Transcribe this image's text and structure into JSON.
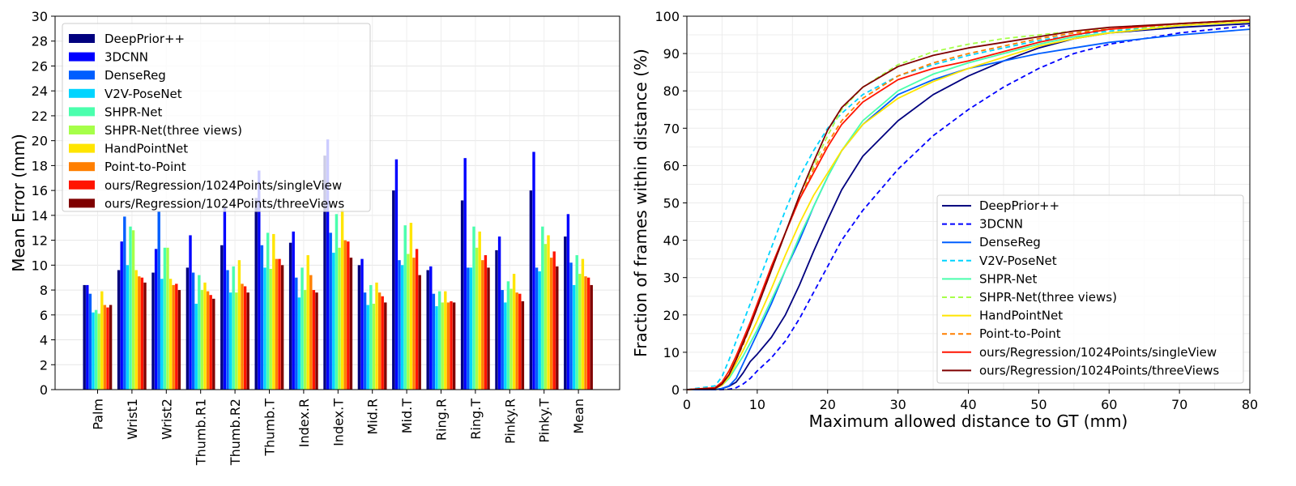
{
  "chart_data": [
    {
      "type": "bar",
      "title": "",
      "xlabel": "",
      "ylabel": "Mean Error (mm)",
      "ylim": [
        0,
        30
      ],
      "yticks": [
        0,
        2,
        4,
        6,
        8,
        10,
        12,
        14,
        16,
        18,
        20,
        22,
        24,
        26,
        28,
        30
      ],
      "grid": true,
      "legend_position": "top-left",
      "categories": [
        "Palm",
        "Wrist1",
        "Wrist2",
        "Thumb.R1",
        "Thumb.R2",
        "Thumb.T",
        "Index.R",
        "Index.T",
        "Mid.R",
        "Mid.T",
        "Ring.R",
        "Ring.T",
        "Pinky.R",
        "Pinky.T",
        "Mean"
      ],
      "series": [
        {
          "name": "DeepPrior++",
          "color": "#00007f",
          "values": [
            8.4,
            9.6,
            9.4,
            9.8,
            11.6,
            15.4,
            11.8,
            18.8,
            10.0,
            16.0,
            9.6,
            15.2,
            11.2,
            16.0,
            12.3
          ]
        },
        {
          "name": "3DCNN",
          "color": "#0000ff",
          "values": [
            8.4,
            11.9,
            11.3,
            12.4,
            14.7,
            17.6,
            12.7,
            20.1,
            10.5,
            18.5,
            9.9,
            18.6,
            12.3,
            19.1,
            14.1
          ]
        },
        {
          "name": "DenseReg",
          "color": "#005eff",
          "values": [
            7.7,
            13.9,
            14.3,
            9.4,
            9.6,
            11.6,
            9.0,
            12.6,
            7.8,
            10.4,
            7.7,
            9.8,
            8.0,
            9.8,
            10.2
          ]
        },
        {
          "name": "V2V-PoseNet",
          "color": "#00d4ff",
          "values": [
            6.2,
            10.0,
            8.9,
            6.9,
            7.8,
            9.8,
            7.4,
            11.0,
            6.8,
            10.0,
            6.7,
            9.8,
            7.0,
            9.5,
            8.4
          ]
        },
        {
          "name": "SHPR-Net",
          "color": "#4affad",
          "values": [
            6.4,
            13.1,
            11.4,
            9.2,
            9.9,
            12.6,
            9.8,
            14.1,
            8.4,
            13.2,
            7.9,
            13.1,
            8.7,
            13.1,
            10.8
          ]
        },
        {
          "name": "SHPR-Net(three views)",
          "color": "#a6ff49",
          "values": [
            6.1,
            12.8,
            11.4,
            8.0,
            7.8,
            9.7,
            8.0,
            11.4,
            6.9,
            10.9,
            7.0,
            11.4,
            8.1,
            11.7,
            9.3
          ]
        },
        {
          "name": "HandPointNet",
          "color": "#ffe500",
          "values": [
            7.9,
            9.6,
            8.9,
            8.6,
            10.4,
            12.5,
            10.8,
            14.5,
            8.6,
            13.4,
            7.9,
            12.7,
            9.3,
            12.4,
            10.5
          ]
        },
        {
          "name": "Point-to-Point",
          "color": "#ff7f00",
          "values": [
            6.8,
            9.1,
            8.4,
            7.9,
            8.5,
            10.5,
            9.2,
            12.0,
            7.8,
            10.6,
            7.0,
            10.4,
            7.8,
            10.6,
            9.1
          ]
        },
        {
          "name": "ours/Regression/1024Points/singleView",
          "color": "#ff1400",
          "values": [
            6.6,
            9.0,
            8.5,
            7.6,
            8.3,
            10.5,
            8.0,
            11.9,
            7.5,
            11.3,
            7.1,
            10.8,
            7.7,
            11.1,
            9.0
          ]
        },
        {
          "name": "ours/Regression/1024Points/threeViews",
          "color": "#7f0000",
          "values": [
            6.8,
            8.6,
            8.0,
            7.3,
            7.8,
            10.0,
            7.8,
            10.6,
            7.0,
            9.2,
            7.0,
            9.8,
            7.1,
            9.9,
            8.4
          ]
        }
      ]
    },
    {
      "type": "line",
      "title": "",
      "xlabel": "Maximum allowed distance to GT (mm)",
      "ylabel": "Fraction of frames within distance (%)",
      "xlim": [
        0,
        80
      ],
      "ylim": [
        0,
        100
      ],
      "xticks": [
        0,
        10,
        20,
        30,
        40,
        50,
        60,
        70,
        80
      ],
      "yticks": [
        0,
        10,
        20,
        30,
        40,
        50,
        60,
        70,
        80,
        90,
        100
      ],
      "grid": true,
      "legend_position": "lower-right",
      "x": [
        0,
        4,
        5,
        6,
        7,
        8,
        9,
        10,
        12,
        14,
        16,
        18,
        20,
        22,
        25,
        30,
        35,
        40,
        45,
        50,
        55,
        60,
        70,
        80
      ],
      "series": [
        {
          "name": "DeepPrior++",
          "color": "#00007f",
          "dash": "solid",
          "values": [
            0,
            0,
            0.3,
            0.9,
            2.0,
            4.5,
            7.5,
            9.5,
            14.0,
            20.0,
            28.0,
            37.0,
            45.5,
            53.5,
            62.5,
            72.0,
            79.0,
            84.0,
            88.0,
            91.5,
            94.0,
            95.5,
            97.0,
            98.0
          ]
        },
        {
          "name": "3DCNN",
          "color": "#0000ff",
          "dash": "dashed",
          "values": [
            0,
            0,
            0,
            0.1,
            0.5,
            1.5,
            3.0,
            5.0,
            8.5,
            13.0,
            19.0,
            26.0,
            33.0,
            40.0,
            48.0,
            59.0,
            68.0,
            75.0,
            81.0,
            86.0,
            90.0,
            92.5,
            95.5,
            97.5
          ]
        },
        {
          "name": "DenseReg",
          "color": "#005eff",
          "dash": "solid",
          "values": [
            0,
            0,
            0.3,
            1.0,
            3.0,
            7.0,
            11.0,
            15.0,
            23.0,
            32.0,
            40.0,
            49.0,
            57.0,
            64.0,
            71.0,
            79.0,
            83.0,
            86.0,
            88.0,
            90.0,
            91.5,
            93.0,
            95.0,
            96.5
          ]
        },
        {
          "name": "V2V-PoseNet",
          "color": "#00d4ff",
          "dash": "dashed",
          "values": [
            0,
            1.0,
            3.5,
            8.0,
            13.0,
            18.0,
            23.0,
            28.0,
            38.0,
            48.0,
            57.0,
            64.0,
            70.0,
            74.0,
            79.0,
            84.0,
            87.0,
            89.5,
            91.5,
            93.5,
            95.0,
            96.0,
            97.5,
            98.5
          ]
        },
        {
          "name": "SHPR-Net",
          "color": "#4affad",
          "dash": "solid",
          "values": [
            0,
            0.3,
            1.2,
            3.0,
            6.0,
            9.0,
            12.5,
            16.0,
            24.0,
            32.0,
            41.0,
            49.0,
            57.0,
            64.0,
            72.0,
            80.0,
            84.5,
            87.5,
            90.0,
            92.5,
            94.5,
            95.5,
            97.5,
            98.5
          ]
        },
        {
          "name": "SHPR-Net(three views)",
          "color": "#a6ff49",
          "dash": "dashed",
          "values": [
            0,
            0.5,
            2.0,
            5.0,
            9.0,
            13.0,
            17.5,
            22.0,
            32.0,
            42.0,
            52.0,
            60.0,
            68.0,
            75.0,
            81.0,
            87.0,
            90.5,
            92.5,
            94.0,
            95.0,
            96.0,
            96.5,
            97.5,
            98.5
          ]
        },
        {
          "name": "HandPointNet",
          "color": "#ffe500",
          "dash": "solid",
          "values": [
            0,
            0.3,
            1.2,
            3.5,
            7.0,
            10.5,
            14.5,
            18.5,
            27.0,
            36.0,
            44.5,
            52.0,
            58.0,
            64.0,
            71.0,
            78.0,
            82.5,
            86.0,
            89.0,
            92.0,
            94.0,
            95.5,
            97.5,
            98.5
          ]
        },
        {
          "name": "Point-to-Point",
          "color": "#ff7f00",
          "dash": "dashed",
          "values": [
            0,
            0.3,
            1.5,
            4.0,
            8.0,
            12.0,
            17.0,
            22.0,
            32.0,
            42.0,
            51.0,
            59.0,
            66.0,
            72.0,
            78.0,
            84.0,
            87.5,
            90.0,
            92.0,
            94.0,
            95.5,
            96.5,
            98.0,
            99.0
          ]
        },
        {
          "name": "ours/Regression/1024Points/singleView",
          "color": "#ff1400",
          "dash": "solid",
          "values": [
            0,
            0.5,
            2.0,
            5.0,
            9.0,
            13.5,
            18.0,
            23.0,
            33.0,
            42.0,
            51.0,
            58.0,
            65.0,
            71.0,
            77.0,
            83.0,
            86.0,
            88.0,
            90.5,
            93.0,
            95.0,
            96.5,
            98.0,
            99.0
          ]
        },
        {
          "name": "ours/Regression/1024Points/threeViews",
          "color": "#7f0000",
          "dash": "solid",
          "values": [
            0,
            0.3,
            1.5,
            4.0,
            8.0,
            12.5,
            17.0,
            22.0,
            32.0,
            42.0,
            52.0,
            61.0,
            69.5,
            75.5,
            81.0,
            86.5,
            89.5,
            91.5,
            93.0,
            94.5,
            96.0,
            97.0,
            98.0,
            99.0
          ]
        }
      ]
    }
  ]
}
